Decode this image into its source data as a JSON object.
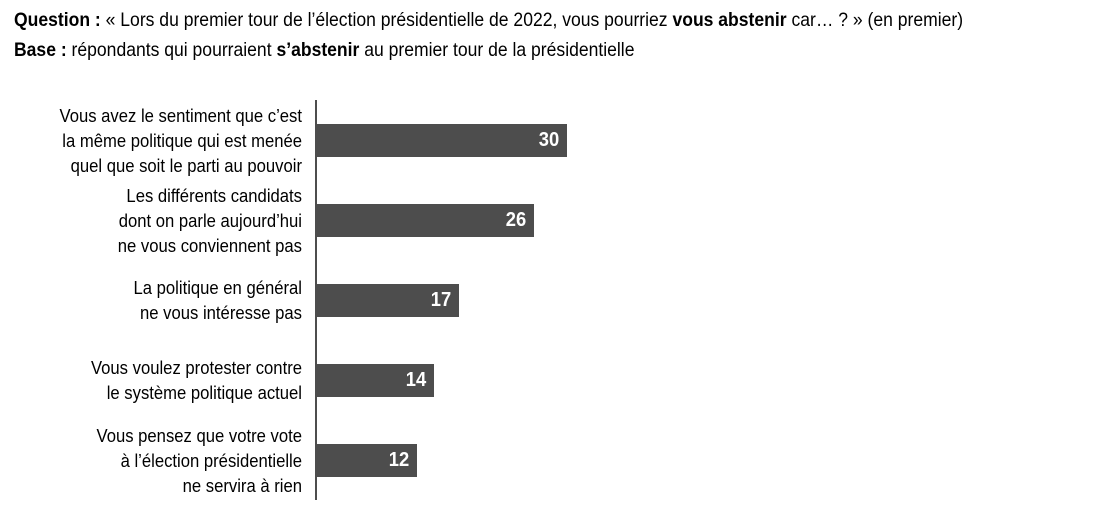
{
  "header": {
    "line1": {
      "bold1": "Question :",
      "text1": " « Lors du premier tour de l’élection présidentielle de 2022, vous pourriez ",
      "bold2": "vous abstenir",
      "text2": " car… ? » (en premier)"
    },
    "line2": {
      "bold1": "Base :",
      "text1": " répondants qui pourraient ",
      "bold2": "s’abstenir",
      "text2": " au premier tour de la présidentielle"
    }
  },
  "chart_data": {
    "type": "bar",
    "orientation": "horizontal",
    "categories": [
      "Vous avez le sentiment que c’est la même politique qui est menée quel que soit le parti au pouvoir",
      "Les différents candidats dont on parle aujourd’hui ne vous conviennent pas",
      "La politique en général ne vous intéresse pas",
      "Vous voulez protester contre le système politique actuel",
      "Vous pensez que votre vote à l’élection présidentielle ne servira à rien"
    ],
    "category_lines": [
      [
        "Vous avez le sentiment que c’est",
        "la même politique qui est menée",
        "quel que soit le parti au pouvoir"
      ],
      [
        "Les différents candidats",
        "dont on parle aujourd’hui",
        "ne vous conviennent pas"
      ],
      [
        "La politique en général",
        "ne vous intéresse pas"
      ],
      [
        "Vous voulez protester contre",
        "le système politique actuel"
      ],
      [
        "Vous pensez que votre vote",
        "à l’élection présidentielle",
        "ne servira à rien"
      ]
    ],
    "values": [
      30,
      26,
      17,
      14,
      12
    ],
    "value_labels": [
      "30",
      "26",
      "17",
      "14",
      "12"
    ],
    "xlim": [
      0,
      36
    ],
    "grid": false,
    "legend": false,
    "bar_color": "#4d4d4d",
    "axis_color": "#4d4d4d",
    "value_label_color": "#ffffff",
    "category_label_color": "#000000"
  }
}
